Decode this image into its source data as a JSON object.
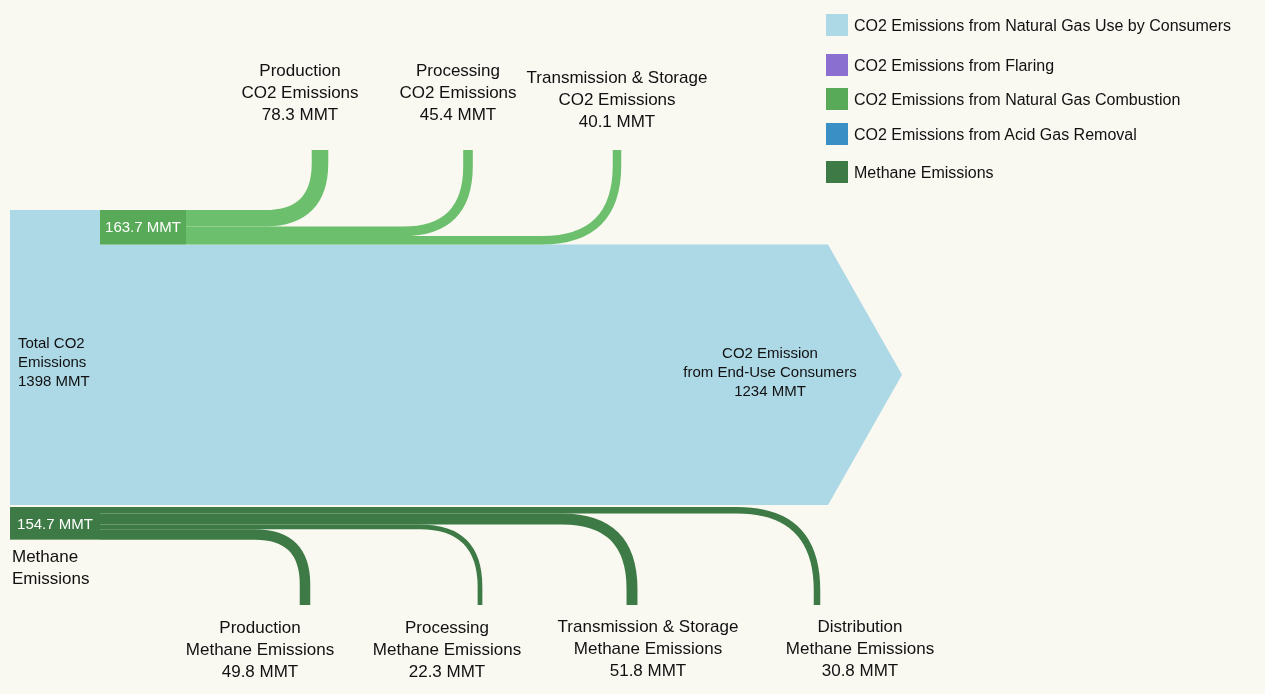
{
  "chart_data": {
    "type": "other",
    "categories": [
      "Total CO2\nEmissions",
      null,
      "CO2 Emission\nfrom End-Use Consumers",
      "Production\nCO2 Emissions",
      "Processing\nCO2 Emissions",
      "Transmission & Storage\nCO2 Emissions",
      "Methane\nEmissions",
      "Production\nMethane Emissions",
      "Processing\nMethane Emissions",
      "Transmission & Storage\nMethane Emissions",
      "Distribution\nMethane Emissions"
    ],
    "colors": [
      "#add8e6",
      "#58aa58",
      "#add8e6",
      "#6cbf6c",
      "#6cbf6c",
      "#6cbf6c",
      "#3d7a45",
      "#3d7a45",
      "#3d7a45",
      "#3d7a45",
      "#3d7a45"
    ],
    "legend": "top right",
    "annotations": [
      "163.7 MMT"
    ],
    "series": [
      {
        "name": "CO2 Emissions from Natural Gas Use by Consumers",
        "color": "#add8e6",
        "values": [
          1398,
          null,
          1234,
          null,
          null,
          null,
          null,
          null,
          null,
          null,
          null
        ],
        "value_labels": [
          "1398 MMT",
          null,
          "1234 MMT",
          null,
          null,
          null,
          null,
          null,
          null,
          null,
          null
        ]
      },
      {
        "name": "CO2 Emissions from Flaring",
        "color": "#8a6fd0",
        "values": [
          null,
          null,
          null,
          null,
          null,
          null,
          null,
          null,
          null,
          null,
          null
        ]
      },
      {
        "name": "CO2 Emissions from Natural Gas Combustion",
        "color": "#58aa58",
        "values": [
          null,
          null,
          null,
          78.3,
          45.4,
          40.1,
          null,
          null,
          null,
          null,
          null
        ],
        "value_labels": [
          null,
          null,
          null,
          "78.3 MMT",
          "45.4 MMT",
          "40.1 MMT",
          null,
          null,
          null,
          null,
          null
        ]
      },
      {
        "name": "CO2 Emissions from Acid Gas Removal",
        "color": "#3a8fc4",
        "values": [
          null,
          null,
          null,
          null,
          null,
          null,
          null,
          null,
          null,
          null,
          null
        ]
      },
      {
        "name": "Methane Emissions",
        "color": "#3d7a45",
        "values": [
          null,
          null,
          null,
          null,
          null,
          null,
          154.7,
          49.8,
          22.3,
          51.8,
          30.8
        ],
        "value_labels": [
          null,
          null,
          null,
          null,
          null,
          null,
          "154.7 MMT",
          "49.8 MMT",
          "22.3 MMT",
          "51.8 MMT",
          "30.8 MMT"
        ]
      }
    ]
  }
}
